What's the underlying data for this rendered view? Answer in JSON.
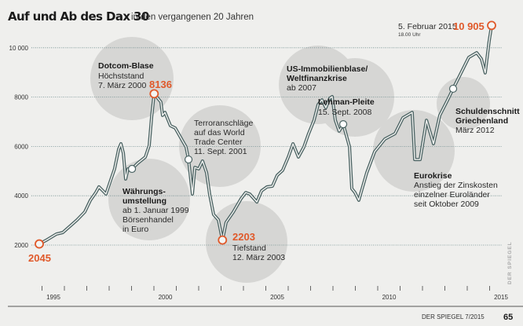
{
  "chart_data": {
    "type": "line",
    "title": "Auf und Ab des Dax 30",
    "subtitle": "in den vergangenen 20 Jahren",
    "xlabel": "",
    "ylabel": "",
    "xlim": [
      1994.7,
      2015.4
    ],
    "ylim": [
      0,
      11500
    ],
    "x_ticks": [
      "1995",
      "2000",
      "2005",
      "2010",
      "2015"
    ],
    "y_ticks": [
      "2000",
      "4000",
      "6000",
      "8000",
      "10 000"
    ],
    "y_tick_values": [
      2000,
      4000,
      6000,
      8000,
      10000
    ],
    "grid": true,
    "line_color": "#4a6262",
    "highlight_color": "#e0592a",
    "x": [
      1995.1,
      1995.45,
      1995.86,
      1996.14,
      1996.77,
      1997.11,
      1997.36,
      1997.6,
      1997.74,
      1997.88,
      1998.05,
      1998.23,
      1998.43,
      1998.61,
      1998.71,
      1998.82,
      1998.92,
      1999.02,
      1999.2,
      1999.44,
      1999.79,
      1999.96,
      2000.07,
      2000.18,
      2000.48,
      2000.55,
      2000.66,
      2000.9,
      2001.11,
      2001.45,
      2001.59,
      2001.7,
      2001.87,
      2001.98,
      2002.15,
      2002.32,
      2002.5,
      2002.63,
      2002.81,
      2003.02,
      2003.2,
      2003.36,
      2003.68,
      2004.02,
      2004.23,
      2004.41,
      2004.72,
      2004.93,
      2005.17,
      2005.41,
      2005.62,
      2005.86,
      2006.11,
      2006.32,
      2006.56,
      2006.8,
      2007.01,
      2007.25,
      2007.43,
      2007.6,
      2007.77,
      2007.95,
      2008.05,
      2008.19,
      2008.36,
      2008.54,
      2008.82,
      2008.92,
      2009.06,
      2009.23,
      2009.58,
      2009.93,
      2010.38,
      2010.83,
      2011.18,
      2011.59,
      2011.7,
      2011.94,
      2012.22,
      2012.53,
      2012.81,
      2013.16,
      2013.4,
      2013.75,
      2014.09,
      2014.44,
      2014.65,
      2014.82,
      2014.99,
      2015.1
    ],
    "values": [
      2045,
      2220,
      2450,
      2510,
      3020,
      3340,
      3820,
      4130,
      4360,
      4230,
      4070,
      4550,
      5090,
      5890,
      6110,
      5730,
      4680,
      5090,
      5090,
      5310,
      5570,
      6040,
      7200,
      8136,
      7800,
      7260,
      7380,
      6840,
      6750,
      6200,
      5980,
      5470,
      4070,
      5150,
      5090,
      5410,
      4930,
      4070,
      3240,
      3020,
      2203,
      2920,
      3340,
      3880,
      4130,
      4070,
      3750,
      4200,
      4360,
      4390,
      4830,
      5030,
      5570,
      6110,
      5570,
      5980,
      6520,
      7060,
      7700,
      7890,
      7570,
      7960,
      8020,
      7060,
      6620,
      6900,
      5980,
      4290,
      4130,
      3820,
      4930,
      5790,
      6300,
      6520,
      7160,
      7380,
      5470,
      5470,
      7060,
      6110,
      7260,
      7890,
      8340,
      8980,
      9610,
      9800,
      9550,
      8980,
      10250,
      10905
    ],
    "highlights": [
      {
        "x": 1995.1,
        "value": 2045,
        "label": "2045"
      },
      {
        "x": 2000.18,
        "value": 8136,
        "label": "8136"
      },
      {
        "x": 2003.2,
        "value": 2203,
        "label": "2203"
      },
      {
        "x": 2015.1,
        "value": 10905,
        "label": "10 905"
      }
    ],
    "event_markers": [
      {
        "x": 1999.2,
        "value": 5090
      },
      {
        "x": 2001.7,
        "value": 5470
      },
      {
        "x": 2008.54,
        "value": 6900
      },
      {
        "x": 2013.4,
        "value": 8340
      }
    ],
    "annotations": {
      "dotcom": {
        "title": "Dotcom-Blase",
        "lines": [
          "Höchststand",
          "7. März 2000"
        ]
      },
      "waehrung": {
        "title": [
          "Währungs-",
          "umstellung"
        ],
        "lines": [
          "ab 1. Januar 1999",
          "Börsenhandel",
          "in Euro"
        ]
      },
      "terror": {
        "lines": [
          "Terroranschläge",
          "auf das World",
          "Trade Center",
          "11. Sept. 2001"
        ]
      },
      "tiefstand": {
        "lines": [
          "Tiefstand",
          "12. März 2003"
        ]
      },
      "usimmo": {
        "title": [
          "US-Immobilienblase/",
          "Weltfinanzkrise"
        ],
        "lines": [
          "ab 2007"
        ]
      },
      "lehman": {
        "title": "Lehman-Pleite",
        "lines": [
          "15. Sept. 2008"
        ]
      },
      "eurokrise": {
        "title": "Eurokrise",
        "lines": [
          "Anstieg der Zinskosten",
          "einzelner Euroländer",
          "seit Oktober 2009"
        ]
      },
      "schulden": {
        "title": [
          "Schuldenschnitt",
          "Griechenland"
        ],
        "lines": [
          "März 2012"
        ]
      },
      "latest": {
        "date": "5. Februar 2015",
        "time": "18.00 Uhr"
      }
    }
  },
  "footer": {
    "publication": "DER SPIEGEL 7/2015",
    "page": "65",
    "credit": "DER SPIEGEL"
  }
}
